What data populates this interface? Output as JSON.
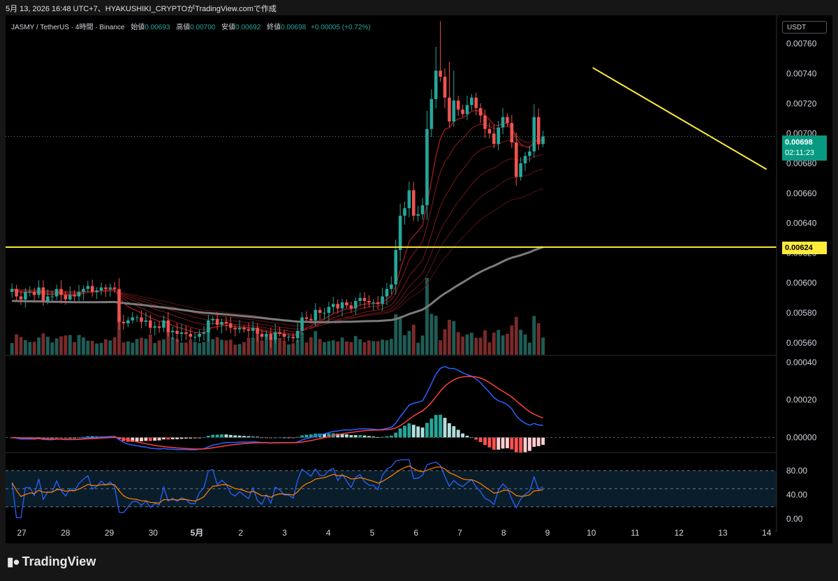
{
  "header": {
    "attribution": "5月 13, 2026 16:48 UTC+7、HYAKUSHIKI_CRYPTOがTradingView.comで作成"
  },
  "legend": {
    "symbol": "JASMY / TetherUS · 4時間 · Binance",
    "open_label": "始値",
    "open": "0.00693",
    "high_label": "高値",
    "high": "0.00700",
    "low_label": "安値",
    "low": "0.00692",
    "close_label": "終値",
    "close": "0.00698",
    "change": "+0.00005 (+0.72%)"
  },
  "currency_button": "USDT",
  "price_tag": {
    "price": "0.00698",
    "countdown": "02:11:23"
  },
  "level_tag": "0.00624",
  "brand": "TradingView",
  "colors": {
    "up": "#26a69a",
    "down": "#ef5350",
    "level": "#ffeb3b",
    "macd": "#2962ff",
    "signal": "#ff4040",
    "rsi": "#2962ff",
    "rsi_ma": "#f57c00"
  },
  "chart_data": [
    {
      "type": "candlestick",
      "pane": "price",
      "x_ticks": [
        "27",
        "28",
        "29",
        "30",
        "5月",
        "2",
        "3",
        "4",
        "5",
        "6",
        "7",
        "8",
        "9",
        "10",
        "11",
        "12",
        "13",
        "14"
      ],
      "y_ticks": [
        "0.00560",
        "0.00580",
        "0.00600",
        "0.00620",
        "0.00640",
        "0.00660",
        "0.00680",
        "0.00700",
        "0.00720",
        "0.00740",
        "0.00760"
      ],
      "ylim": [
        0.00552,
        0.00779
      ],
      "interval": "4h",
      "candles_close": [
        0.00596,
        0.00591,
        0.00589,
        0.00594,
        0.00594,
        0.00592,
        0.00597,
        0.00588,
        0.00591,
        0.00591,
        0.00596,
        0.00592,
        0.00589,
        0.00592,
        0.00591,
        0.00594,
        0.00596,
        0.00598,
        0.00594,
        0.00595,
        0.00597,
        0.00596,
        0.00597,
        0.00596,
        0.00574,
        0.00573,
        0.00575,
        0.00577,
        0.00577,
        0.00574,
        0.00575,
        0.0057,
        0.00571,
        0.0057,
        0.00575,
        0.00567,
        0.00568,
        0.00566,
        0.00567,
        0.00566,
        0.00564,
        0.00564,
        0.00566,
        0.00567,
        0.00575,
        0.00576,
        0.00572,
        0.00574,
        0.00573,
        0.0057,
        0.00569,
        0.0057,
        0.00569,
        0.00568,
        0.0057,
        0.00566,
        0.00564,
        0.00566,
        0.00562,
        0.00567,
        0.00566,
        0.00564,
        0.00564,
        0.00563,
        0.00568,
        0.00577,
        0.00576,
        0.00575,
        0.00582,
        0.0058,
        0.0058,
        0.00584,
        0.00586,
        0.00583,
        0.00587,
        0.00585,
        0.00583,
        0.00588,
        0.0059,
        0.00588,
        0.00587,
        0.00587,
        0.00586,
        0.00591,
        0.00596,
        0.00599,
        0.00622,
        0.00645,
        0.0065,
        0.00662,
        0.00645,
        0.00646,
        0.00652,
        0.00703,
        0.00723,
        0.00742,
        0.00738,
        0.00724,
        0.00708,
        0.00722,
        0.00716,
        0.00713,
        0.00719,
        0.00724,
        0.00717,
        0.00712,
        0.00703,
        0.007,
        0.00693,
        0.00704,
        0.00711,
        0.00707,
        0.00694,
        0.00671,
        0.0068,
        0.00685,
        0.00688,
        0.00711,
        0.00693,
        0.00698
      ],
      "horizontal_level": 0.00624,
      "trendline": [
        [
          0.00744,
          "10"
        ],
        [
          0.00676,
          "14"
        ]
      ]
    },
    {
      "type": "bar+line",
      "pane": "macd",
      "y_ticks": [
        "0.00000",
        "0.00020",
        "0.00040"
      ],
      "ylim": [
        -8e-05,
        0.00044
      ]
    },
    {
      "type": "line",
      "pane": "rsi",
      "y_ticks": [
        "0.00",
        "40.00",
        "80.00"
      ],
      "ylim": [
        -8,
        110
      ],
      "bands": [
        20,
        50,
        80
      ]
    }
  ]
}
